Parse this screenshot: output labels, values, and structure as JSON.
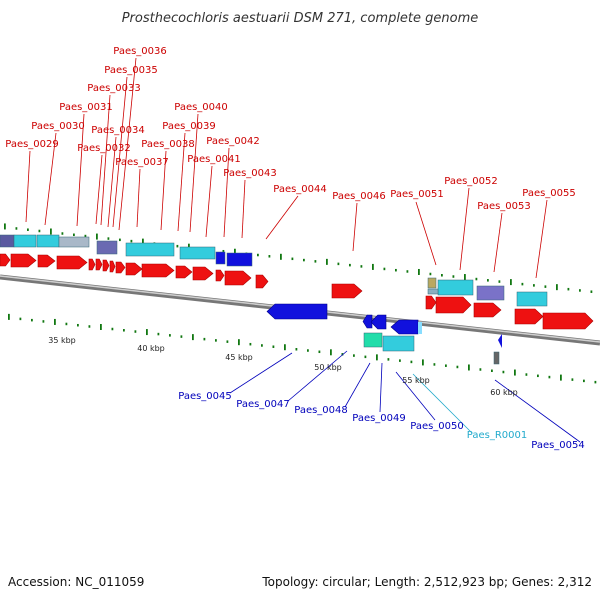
{
  "title": "Prosthecochloris aestuarii DSM 271, complete genome",
  "footer": {
    "accession": "Accession: NC_011059",
    "summary": "Topology: circular; Length: 2,512,923 bp; Genes: 2,312"
  },
  "colors": {
    "cds_forward": "#ee1111",
    "cds_reverse": "#1111dd",
    "rna": "#33ccdd",
    "forward_label": "#cc0000",
    "reverse_label": "#0000bb",
    "rna_label": "#22aacc",
    "backbone": "#888888",
    "tick": "#117711"
  },
  "scale": {
    "labels": [
      "35 kbp",
      "40 kbp",
      "45 kbp",
      "50 kbp",
      "55 kbp",
      "60 kbp"
    ]
  },
  "forward_labels": [
    "Paes_0029",
    "Paes_0030",
    "Paes_0031",
    "Paes_0032",
    "Paes_0033",
    "Paes_0034",
    "Paes_0035",
    "Paes_0036",
    "Paes_0037",
    "Paes_0038",
    "Paes_0039",
    "Paes_0040",
    "Paes_0041",
    "Paes_0042",
    "Paes_0043",
    "Paes_0044",
    "Paes_0046",
    "Paes_0051",
    "Paes_0052",
    "Paes_0053",
    "Paes_0055"
  ],
  "reverse_labels": [
    "Paes_0045",
    "Paes_0047",
    "Paes_0048",
    "Paes_0049",
    "Paes_0050",
    "Paes_R0001",
    "Paes_0054"
  ]
}
